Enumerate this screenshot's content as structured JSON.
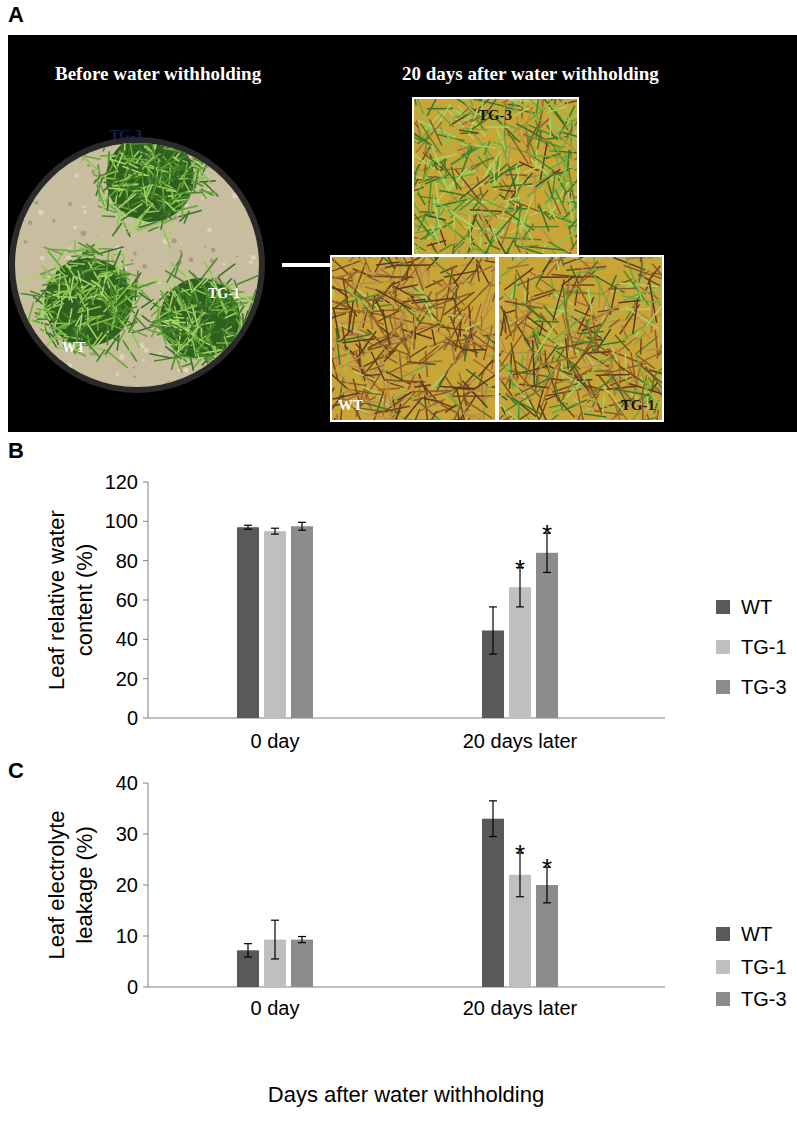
{
  "panel_a": {
    "panel_label": "A",
    "before_title": "Before water withholding",
    "after_title": "20 days after water withholding",
    "before_labels": [
      "TG-3",
      "WT",
      "TG-1"
    ],
    "after_labels": [
      "TG-3",
      "WT",
      "TG-1"
    ]
  },
  "chart_data": [
    {
      "type": "bar",
      "panel_label": "B",
      "y_label": "Leaf relative water content (%)",
      "categories": [
        "0 day",
        "20 days later"
      ],
      "series": [
        {
          "name": "WT",
          "color": "#595959",
          "values": [
            97,
            44.5
          ],
          "errors": [
            1,
            12
          ],
          "significance": [
            null,
            null
          ]
        },
        {
          "name": "TG-1",
          "color": "#bfbfbf",
          "values": [
            95,
            66.5
          ],
          "errors": [
            1.5,
            10
          ],
          "significance": [
            null,
            "*"
          ]
        },
        {
          "name": "TG-3",
          "color": "#8c8c8c",
          "values": [
            97.5,
            84
          ],
          "errors": [
            2,
            10
          ],
          "significance": [
            null,
            "*"
          ]
        }
      ],
      "ylim": [
        0,
        120
      ],
      "yticks": [
        0,
        20,
        40,
        60,
        80,
        100,
        120
      ],
      "grid": false,
      "legend": "right"
    },
    {
      "type": "bar",
      "panel_label": "C",
      "y_label": "Leaf electrolyte leakage (%)",
      "x_label": "Days after water withholding",
      "categories": [
        "0 day",
        "20 days later"
      ],
      "series": [
        {
          "name": "WT",
          "color": "#595959",
          "values": [
            7.2,
            33
          ],
          "errors": [
            1.3,
            3.5
          ],
          "significance": [
            null,
            null
          ]
        },
        {
          "name": "TG-1",
          "color": "#bfbfbf",
          "values": [
            9.3,
            22
          ],
          "errors": [
            3.8,
            4.3
          ],
          "significance": [
            null,
            "*"
          ]
        },
        {
          "name": "TG-3",
          "color": "#8c8c8c",
          "values": [
            9.3,
            20
          ],
          "errors": [
            0.6,
            3.5
          ],
          "significance": [
            null,
            "*"
          ]
        }
      ],
      "ylim": [
        0,
        40
      ],
      "yticks": [
        0,
        10,
        20,
        30,
        40
      ],
      "grid": false,
      "legend": "right"
    }
  ]
}
